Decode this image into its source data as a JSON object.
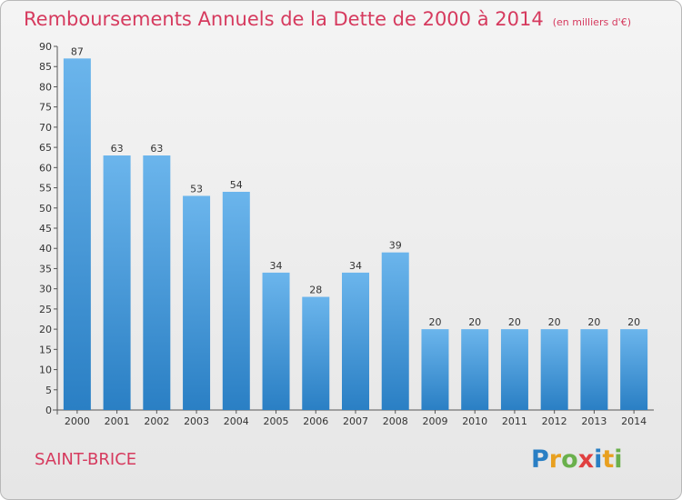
{
  "header": {
    "title": "Remboursements Annuels de la Dette de 2000 à 2014",
    "subtitle": "(en milliers d'€)"
  },
  "footer": {
    "town": "SAINT-BRICE",
    "logo_text": "Proxiti"
  },
  "colors": {
    "title": "#d63a5e",
    "bar_top": "#6bb5ec",
    "bar_bottom": "#2a7fc4",
    "axis": "#555555",
    "logo_letters": [
      "#2a7fc4",
      "#e8a020",
      "#6ab04c",
      "#e04040",
      "#2a7fc4",
      "#e8a020",
      "#6ab04c"
    ]
  },
  "chart_data": {
    "type": "bar",
    "categories": [
      "2000",
      "2001",
      "2002",
      "2003",
      "2004",
      "2005",
      "2006",
      "2007",
      "2008",
      "2009",
      "2010",
      "2011",
      "2012",
      "2013",
      "2014"
    ],
    "values": [
      87,
      63,
      63,
      53,
      54,
      34,
      28,
      34,
      39,
      20,
      20,
      20,
      20,
      20,
      20
    ],
    "data_labels": [
      "87",
      "63",
      "63",
      "53",
      "54",
      "34",
      "28",
      "34",
      "39",
      "20",
      "20",
      "20",
      "20",
      "20",
      "20"
    ],
    "title": "Remboursements Annuels de la Dette de 2000 à 2014",
    "xlabel": "",
    "ylabel": "",
    "ylim": [
      0,
      90
    ],
    "yticks": [
      "0",
      "5",
      "10",
      "15",
      "20",
      "25",
      "30",
      "35",
      "40",
      "45",
      "50",
      "55",
      "60",
      "65",
      "70",
      "75",
      "80",
      "85",
      "90"
    ],
    "grid": false,
    "legend": "none"
  }
}
